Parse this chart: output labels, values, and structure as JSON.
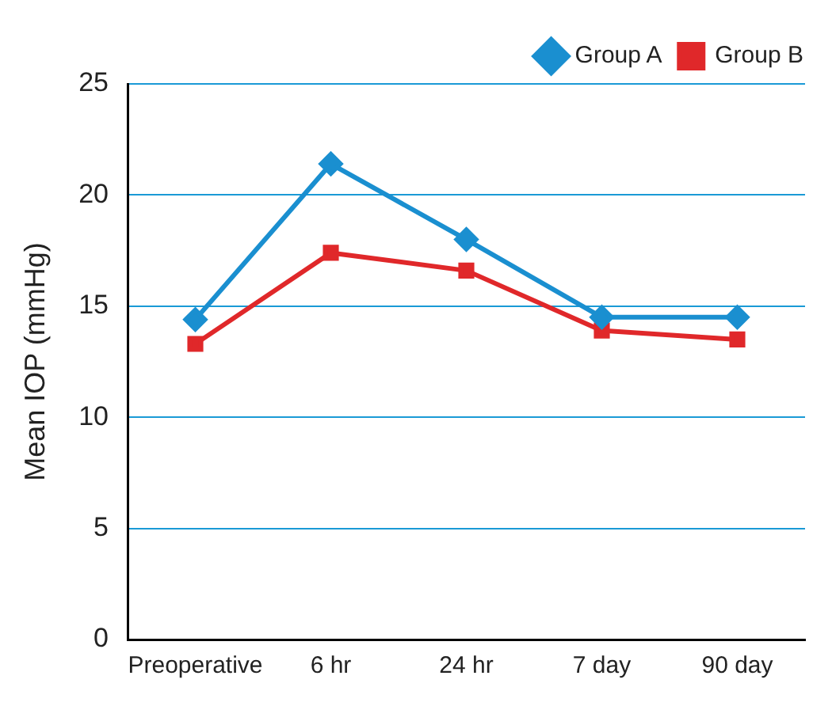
{
  "chart_data": {
    "type": "line",
    "ylabel": "Mean IOP (mmHg)",
    "categories": [
      "Preoperative",
      "6 hr",
      "24 hr",
      "7 day",
      "90 day"
    ],
    "series": [
      {
        "name": "Group A",
        "color": "#1a8fd0",
        "marker": "diamond",
        "values": [
          14.4,
          21.4,
          18.0,
          14.5,
          14.5
        ]
      },
      {
        "name": "Group B",
        "color": "#e0282a",
        "marker": "square",
        "values": [
          13.3,
          17.4,
          16.6,
          13.9,
          13.5
        ]
      }
    ],
    "ylim": [
      0,
      25
    ],
    "yticks": [
      0,
      5,
      10,
      15,
      20,
      25
    ],
    "grid": "y",
    "legend": "top right",
    "line_style": "solid"
  }
}
